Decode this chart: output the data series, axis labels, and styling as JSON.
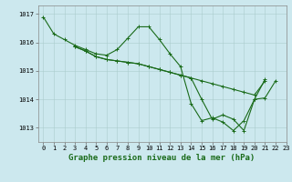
{
  "xlabel": "Graphe pression niveau de la mer (hPa)",
  "ylim": [
    1012.5,
    1017.3
  ],
  "xlim": [
    -0.5,
    23
  ],
  "yticks": [
    1013,
    1014,
    1015,
    1016,
    1017
  ],
  "xticks": [
    0,
    1,
    2,
    3,
    4,
    5,
    6,
    7,
    8,
    9,
    10,
    11,
    12,
    13,
    14,
    15,
    16,
    17,
    18,
    19,
    20,
    21,
    22,
    23
  ],
  "background_color": "#cce8ee",
  "grid_color": "#aacccc",
  "line_color": "#1a6b1a",
  "series": [
    {
      "x": [
        0,
        1,
        2,
        3,
        4,
        5,
        6,
        7,
        8,
        9,
        10,
        11,
        12,
        13,
        14,
        15,
        16,
        17,
        18,
        19,
        20,
        21,
        22
      ],
      "y": [
        1016.9,
        1016.3,
        1016.1,
        1015.9,
        1015.75,
        1015.6,
        1015.55,
        1015.75,
        1016.15,
        1016.55,
        1016.55,
        1016.1,
        1015.6,
        1015.15,
        1013.85,
        1013.25,
        1013.35,
        1013.2,
        1012.9,
        1013.25,
        1014.0,
        1014.05,
        1014.65
      ]
    },
    {
      "x": [
        3,
        4,
        5,
        6,
        7,
        8,
        9,
        10,
        11,
        12,
        13,
        14,
        15,
        16,
        17,
        18,
        19,
        20,
        21
      ],
      "y": [
        1015.85,
        1015.7,
        1015.5,
        1015.4,
        1015.35,
        1015.3,
        1015.25,
        1015.15,
        1015.05,
        1014.95,
        1014.85,
        1014.75,
        1014.65,
        1014.55,
        1014.45,
        1014.35,
        1014.25,
        1014.15,
        1014.65
      ]
    },
    {
      "x": [
        3,
        4,
        5,
        6,
        7,
        8,
        9,
        10,
        11,
        12,
        13,
        14,
        15,
        16,
        17,
        18,
        19,
        20,
        21
      ],
      "y": [
        1015.85,
        1015.7,
        1015.5,
        1015.4,
        1015.35,
        1015.3,
        1015.25,
        1015.15,
        1015.05,
        1014.95,
        1014.85,
        1014.75,
        1014.0,
        1013.3,
        1013.45,
        1013.3,
        1012.9,
        1014.0,
        1014.7
      ]
    }
  ],
  "marker": "+",
  "markersize": 3,
  "linewidth": 0.8,
  "tick_fontsize": 5,
  "label_fontsize": 6.5
}
